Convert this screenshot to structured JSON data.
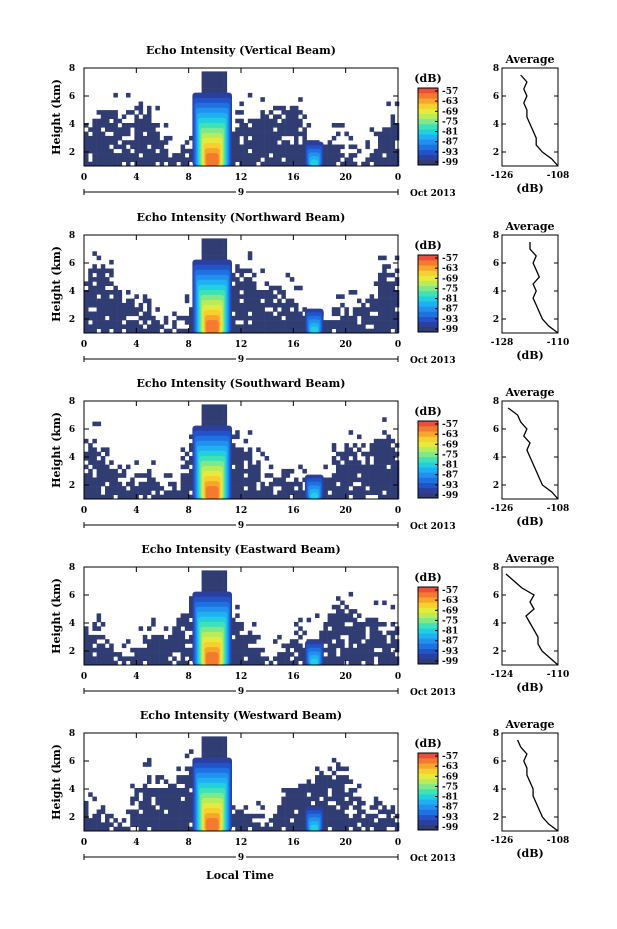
{
  "figure": {
    "xlabel": "Local Time",
    "date_label": "Oct 2013",
    "ylabel": "Height (km)",
    "unit": "(dB)",
    "colormap": [
      "#303d73",
      "#2b3f9f",
      "#2253c8",
      "#1f70e0",
      "#2190ef",
      "#1fb0f2",
      "#22cfe0",
      "#3fe2b6",
      "#7ee88a",
      "#b8ec5a",
      "#e6eb3b",
      "#f7cf2e",
      "#f8a52b",
      "#f47a30",
      "#e94f3a"
    ]
  },
  "chart_data": [
    {
      "type": "heatmap",
      "title": "Echo Intensity (Vertical Beam)",
      "xlabel": "Local Time",
      "ylabel": "Height (km)",
      "x_ticks": [
        "0",
        "4",
        "8",
        "12",
        "16",
        "20",
        "0"
      ],
      "day_label": "9",
      "xlim": [
        0,
        24
      ],
      "ylim": [
        1,
        8
      ],
      "y_ticks": [
        "2",
        "4",
        "6",
        "8"
      ],
      "colorbar_label": "(dB)",
      "colorbar_ticks": [
        "-57",
        "-63",
        "-69",
        "-75",
        "-81",
        "-87",
        "-93",
        "-99"
      ],
      "profile": {
        "title": "Average",
        "xlabel": "(dB)",
        "x_ticks": [
          "-126",
          "-108"
        ],
        "xlim": [
          -126,
          -108
        ],
        "y_ticks": [
          "2",
          "4",
          "6",
          "8"
        ],
        "y": [
          1.0,
          1.5,
          2.0,
          2.5,
          3.0,
          3.5,
          4.0,
          4.5,
          5.0,
          5.5,
          6.0,
          6.5,
          7.0,
          7.5
        ],
        "x": [
          -108,
          -110,
          -113,
          -115,
          -115,
          -116,
          -117,
          -118,
          -118,
          -119,
          -118,
          -119,
          -118,
          -120
        ]
      }
    },
    {
      "type": "heatmap",
      "title": "Echo Intensity (Northward Beam)",
      "xlabel": "Local Time",
      "ylabel": "Height (km)",
      "x_ticks": [
        "0",
        "4",
        "8",
        "12",
        "16",
        "20",
        "0"
      ],
      "day_label": "9",
      "xlim": [
        0,
        24
      ],
      "ylim": [
        1,
        8
      ],
      "y_ticks": [
        "2",
        "4",
        "6",
        "8"
      ],
      "colorbar_label": "(dB)",
      "colorbar_ticks": [
        "-57",
        "-63",
        "-69",
        "-75",
        "-81",
        "-87",
        "-93",
        "-99"
      ],
      "profile": {
        "title": "Average",
        "xlabel": "(dB)",
        "x_ticks": [
          "-128",
          "-110"
        ],
        "xlim": [
          -128,
          -110
        ],
        "y_ticks": [
          "2",
          "4",
          "6",
          "8"
        ],
        "y": [
          1.0,
          1.5,
          2.0,
          2.5,
          3.0,
          3.5,
          4.0,
          4.5,
          5.0,
          5.5,
          6.0,
          6.5,
          7.0,
          7.5
        ],
        "x": [
          -110,
          -113,
          -115,
          -116,
          -117,
          -118,
          -117,
          -118,
          -116,
          -117,
          -118,
          -117,
          -119,
          -119
        ]
      }
    },
    {
      "type": "heatmap",
      "title": "Echo Intensity (Southward Beam)",
      "xlabel": "Local Time",
      "ylabel": "Height (km)",
      "x_ticks": [
        "0",
        "4",
        "8",
        "12",
        "16",
        "20",
        "0"
      ],
      "day_label": "9",
      "xlim": [
        0,
        24
      ],
      "ylim": [
        1,
        8
      ],
      "y_ticks": [
        "2",
        "4",
        "6",
        "8"
      ],
      "colorbar_label": "(dB)",
      "colorbar_ticks": [
        "-57",
        "-63",
        "-69",
        "-75",
        "-81",
        "-87",
        "-93",
        "-99"
      ],
      "profile": {
        "title": "Average",
        "xlabel": "(dB)",
        "x_ticks": [
          "-126",
          "-108"
        ],
        "xlim": [
          -126,
          -108
        ],
        "y_ticks": [
          "2",
          "4",
          "6",
          "8"
        ],
        "y": [
          1.0,
          1.5,
          2.0,
          2.5,
          3.0,
          3.5,
          4.0,
          4.5,
          5.0,
          5.5,
          6.0,
          6.5,
          7.0,
          7.5
        ],
        "x": [
          -108,
          -110,
          -113,
          -114,
          -115,
          -116,
          -117,
          -118,
          -117,
          -119,
          -118,
          -120,
          -121,
          -124
        ]
      }
    },
    {
      "type": "heatmap",
      "title": "Echo Intensity (Eastward Beam)",
      "xlabel": "Local Time",
      "ylabel": "Height (km)",
      "x_ticks": [
        "0",
        "4",
        "8",
        "12",
        "16",
        "20",
        "0"
      ],
      "day_label": "9",
      "xlim": [
        0,
        24
      ],
      "ylim": [
        1,
        8
      ],
      "y_ticks": [
        "2",
        "4",
        "6",
        "8"
      ],
      "colorbar_label": "(dB)",
      "colorbar_ticks": [
        "-57",
        "-63",
        "-69",
        "-75",
        "-81",
        "-87",
        "-93",
        "-99"
      ],
      "profile": {
        "title": "Average",
        "xlabel": "(dB)",
        "x_ticks": [
          "-124",
          "-110"
        ],
        "xlim": [
          -124,
          -110
        ],
        "y_ticks": [
          "2",
          "4",
          "6",
          "8"
        ],
        "y": [
          1.0,
          1.5,
          2.0,
          2.5,
          3.0,
          3.5,
          4.0,
          4.5,
          5.0,
          5.5,
          6.0,
          6.5,
          7.0,
          7.5
        ],
        "x": [
          -110,
          -112,
          -114,
          -115,
          -115,
          -116,
          -117,
          -118,
          -116,
          -117,
          -116,
          -119,
          -121,
          -123
        ]
      }
    },
    {
      "type": "heatmap",
      "title": "Echo Intensity (Westward Beam)",
      "xlabel": "Local Time",
      "ylabel": "Height (km)",
      "x_ticks": [
        "0",
        "4",
        "8",
        "12",
        "16",
        "20",
        "0"
      ],
      "day_label": "9",
      "xlim": [
        0,
        24
      ],
      "ylim": [
        1,
        8
      ],
      "y_ticks": [
        "2",
        "4",
        "6",
        "8"
      ],
      "colorbar_label": "(dB)",
      "colorbar_ticks": [
        "-57",
        "-63",
        "-69",
        "-75",
        "-81",
        "-87",
        "-93",
        "-99"
      ],
      "profile": {
        "title": "Average",
        "xlabel": "(dB)",
        "x_ticks": [
          "-126",
          "-108"
        ],
        "xlim": [
          -126,
          -108
        ],
        "y_ticks": [
          "2",
          "4",
          "6",
          "8"
        ],
        "y": [
          1.0,
          1.5,
          2.0,
          2.5,
          3.0,
          3.5,
          4.0,
          4.5,
          5.0,
          5.5,
          6.0,
          6.5,
          7.0,
          7.5
        ],
        "x": [
          -108,
          -111,
          -113,
          -114,
          -115,
          -116,
          -116,
          -117,
          -118,
          -118,
          -119,
          -118,
          -120,
          -121
        ]
      }
    }
  ]
}
